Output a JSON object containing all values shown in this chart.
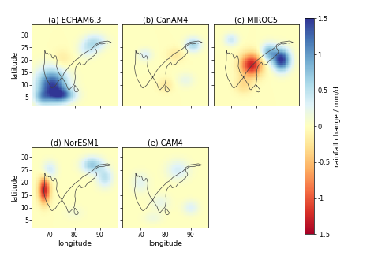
{
  "panels": [
    {
      "label": "(a) ECHAM6.3",
      "col": 0,
      "row": 0
    },
    {
      "label": "(b) CanAM4",
      "col": 1,
      "row": 0
    },
    {
      "label": "(c) MIROC5",
      "col": 2,
      "row": 0
    },
    {
      "label": "(d) NorESM1",
      "col": 0,
      "row": 1
    },
    {
      "label": "(e) CAM4",
      "col": 1,
      "row": 1
    }
  ],
  "lon_range": [
    63,
    97
  ],
  "lat_range": [
    2,
    34
  ],
  "lon_ticks": [
    70,
    80,
    90
  ],
  "lat_ticks": [
    5,
    10,
    15,
    20,
    25,
    30
  ],
  "colorbar_label": "rainfall change / mm/d",
  "vmin": -1.5,
  "vmax": 1.5,
  "india_coast_color": "#444444",
  "panel_label_fontsize": 7,
  "tick_fontsize": 5.5,
  "axis_label_fontsize": 6.5,
  "colorbar_tick_fontsize": 6,
  "colorbar_label_fontsize": 6.5
}
